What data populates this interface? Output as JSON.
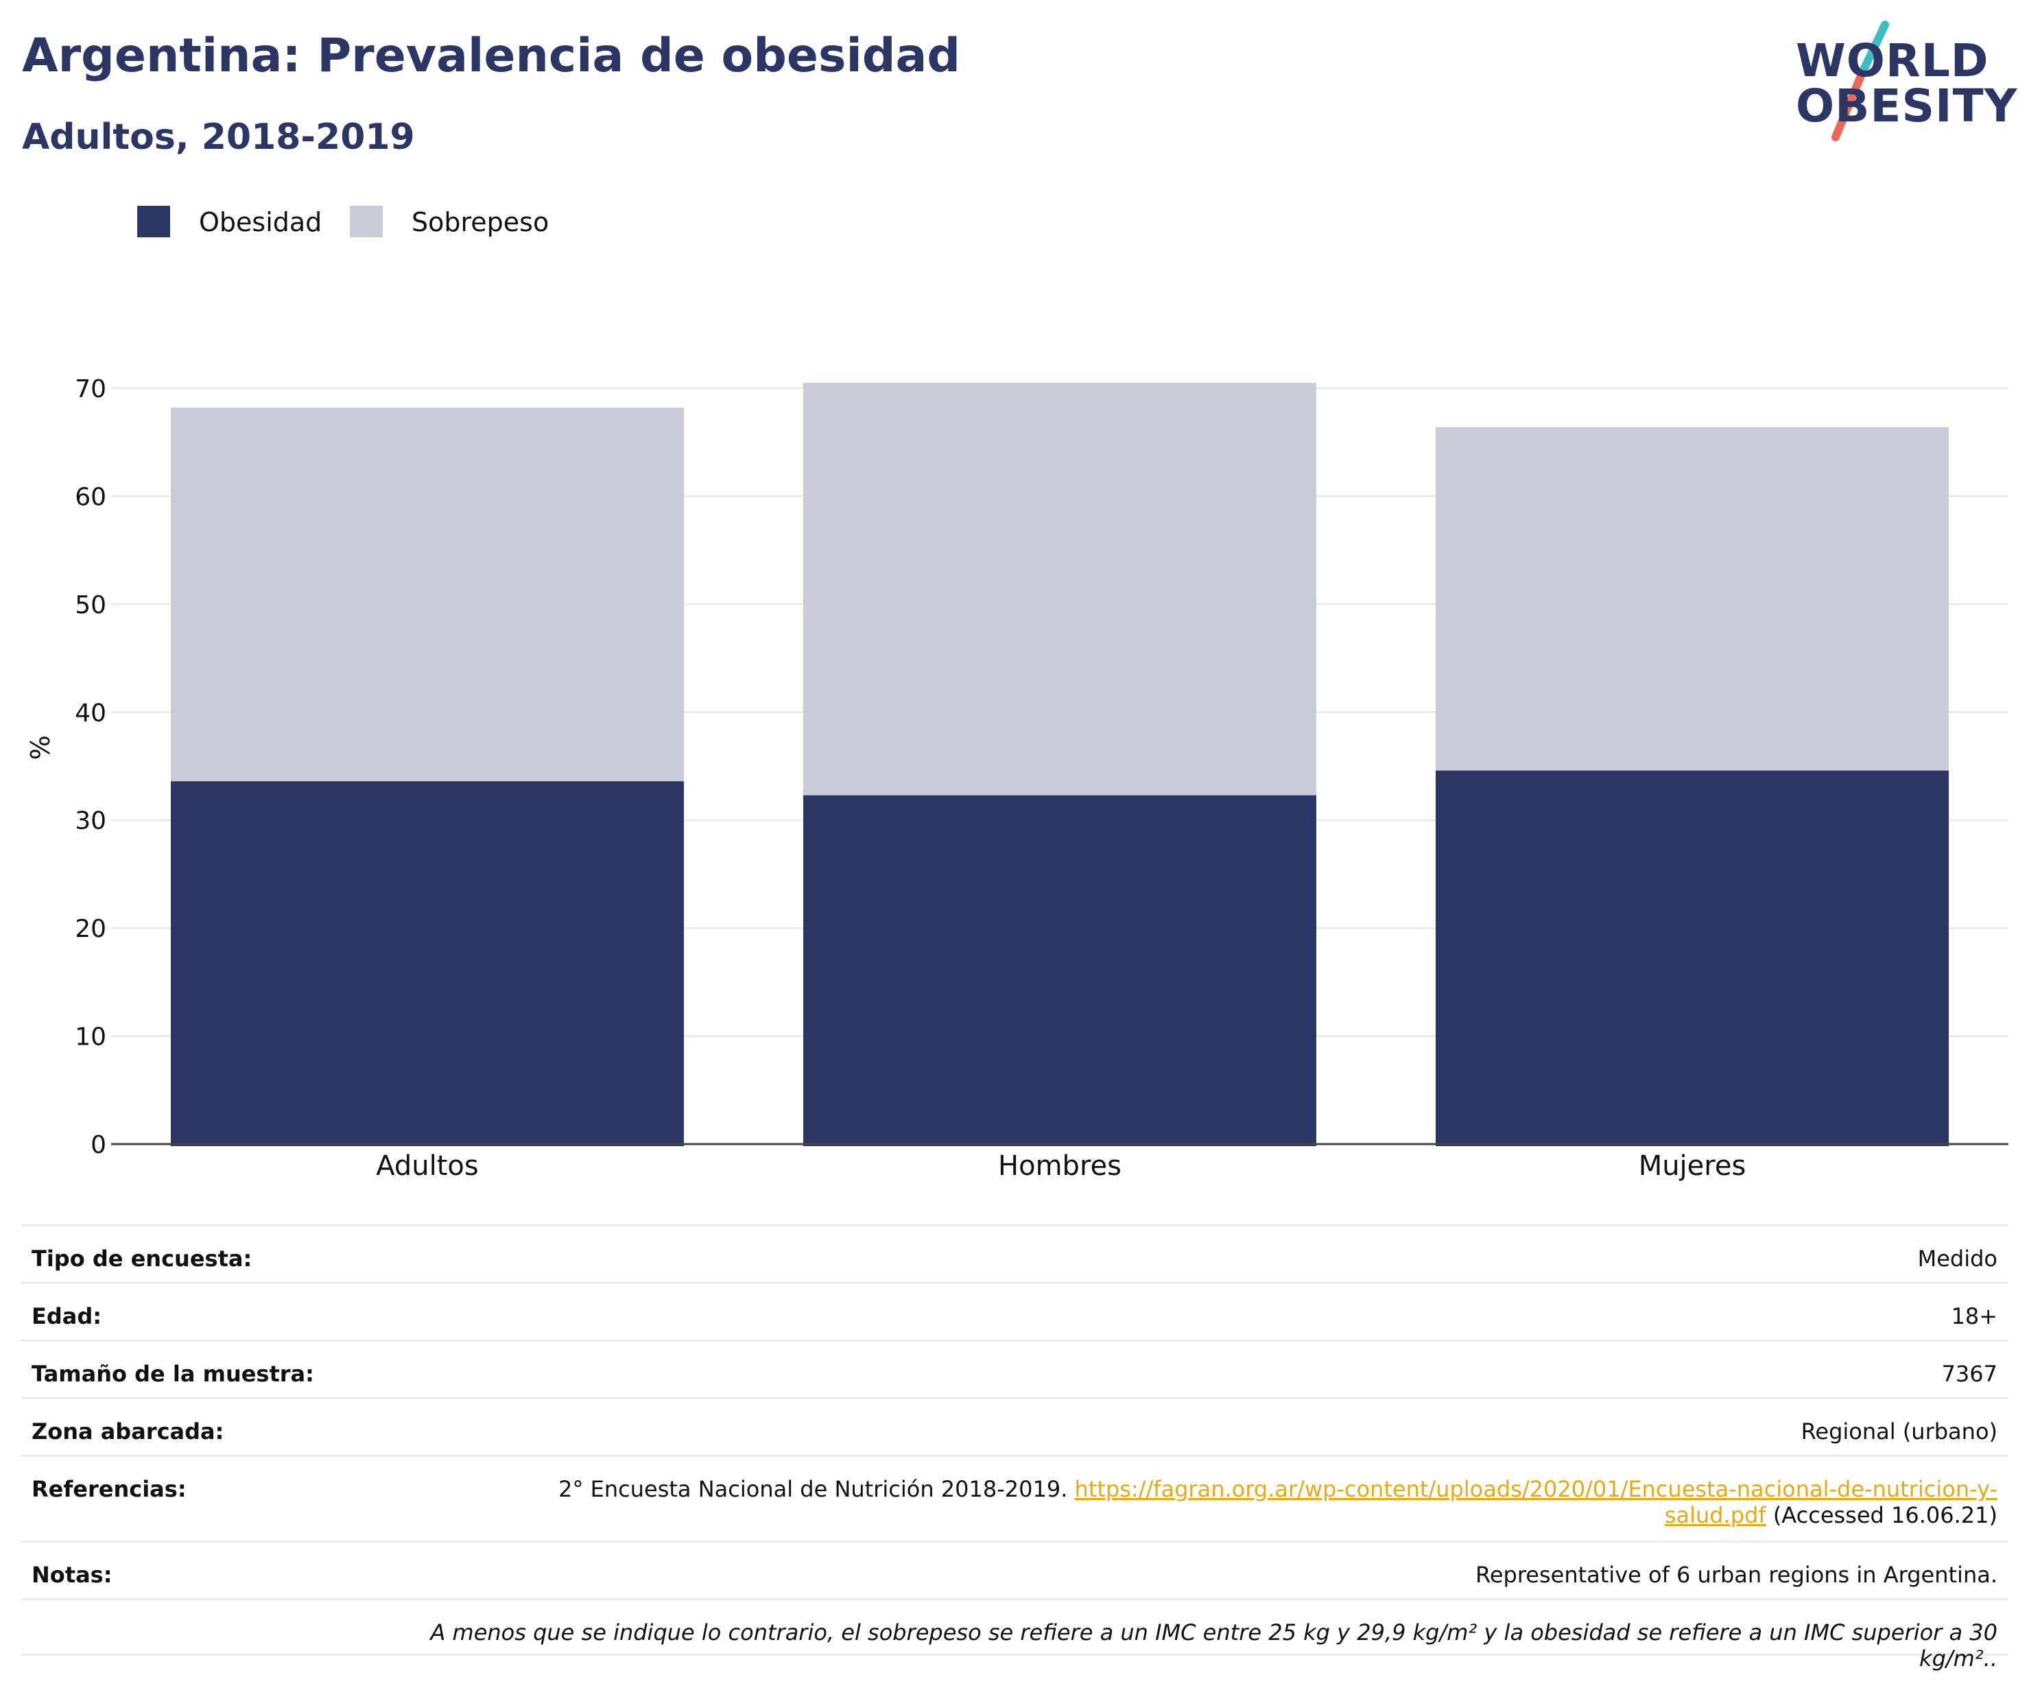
{
  "header": {
    "title": "Argentina: Prevalencia de obesidad",
    "subtitle": "Adultos, 2018-2019"
  },
  "logo": {
    "line1": "WORLD",
    "line2": "OBESITY",
    "colors": {
      "text": "#2b3664",
      "slash_top": "#3bbfc0",
      "slash_bottom": "#e8685a"
    }
  },
  "legend": [
    {
      "label": "Obesidad",
      "color": "#2b3664"
    },
    {
      "label": "Sobrepeso",
      "color": "#c9cbd7"
    }
  ],
  "chart_data": {
    "type": "bar",
    "stacked": true,
    "categories": [
      "Adultos",
      "Hombres",
      "Mujeres"
    ],
    "series": [
      {
        "name": "Obesidad",
        "values": [
          33.6,
          32.3,
          34.6
        ],
        "color": "#2b3664"
      },
      {
        "name": "Sobrepeso",
        "values": [
          34.6,
          38.2,
          31.8
        ],
        "color": "#c9cbd7"
      }
    ],
    "xlabel": "",
    "ylabel": "%",
    "ylim": [
      0,
      70
    ],
    "yticks": [
      0,
      10,
      20,
      30,
      40,
      50,
      60,
      70
    ],
    "grid": true,
    "legend_position": "top-left"
  },
  "info": {
    "survey_type": {
      "label": "Tipo de encuesta:",
      "value": "Medido"
    },
    "age": {
      "label": "Edad:",
      "value": "18+"
    },
    "sample_size": {
      "label": "Tamaño de la muestra:",
      "value": "7367"
    },
    "area": {
      "label": "Zona abarcada:",
      "value": "Regional (urbano)"
    },
    "references": {
      "label": "Referencias:",
      "text": "2° Encuesta Nacional de Nutrición 2018-2019.",
      "link_part1": "https://fagran.org.ar/wp-content/uploads/2020/01/Encuesta-nacional-de-nutricion-y-",
      "link_part2": "salud.pdf",
      "accessed": "(Accessed 16.06.21)"
    },
    "notes": {
      "label": "Notas:",
      "value": "Representative of 6 urban regions in Argentina."
    },
    "footnote": "A menos que se indique lo contrario, el sobrepeso se refiere a un IMC entre 25 kg y 29,9 kg/m² y la obesidad se refiere a un IMC superior a 30 kg/m²..",
    "link_color": "#e9a912"
  }
}
